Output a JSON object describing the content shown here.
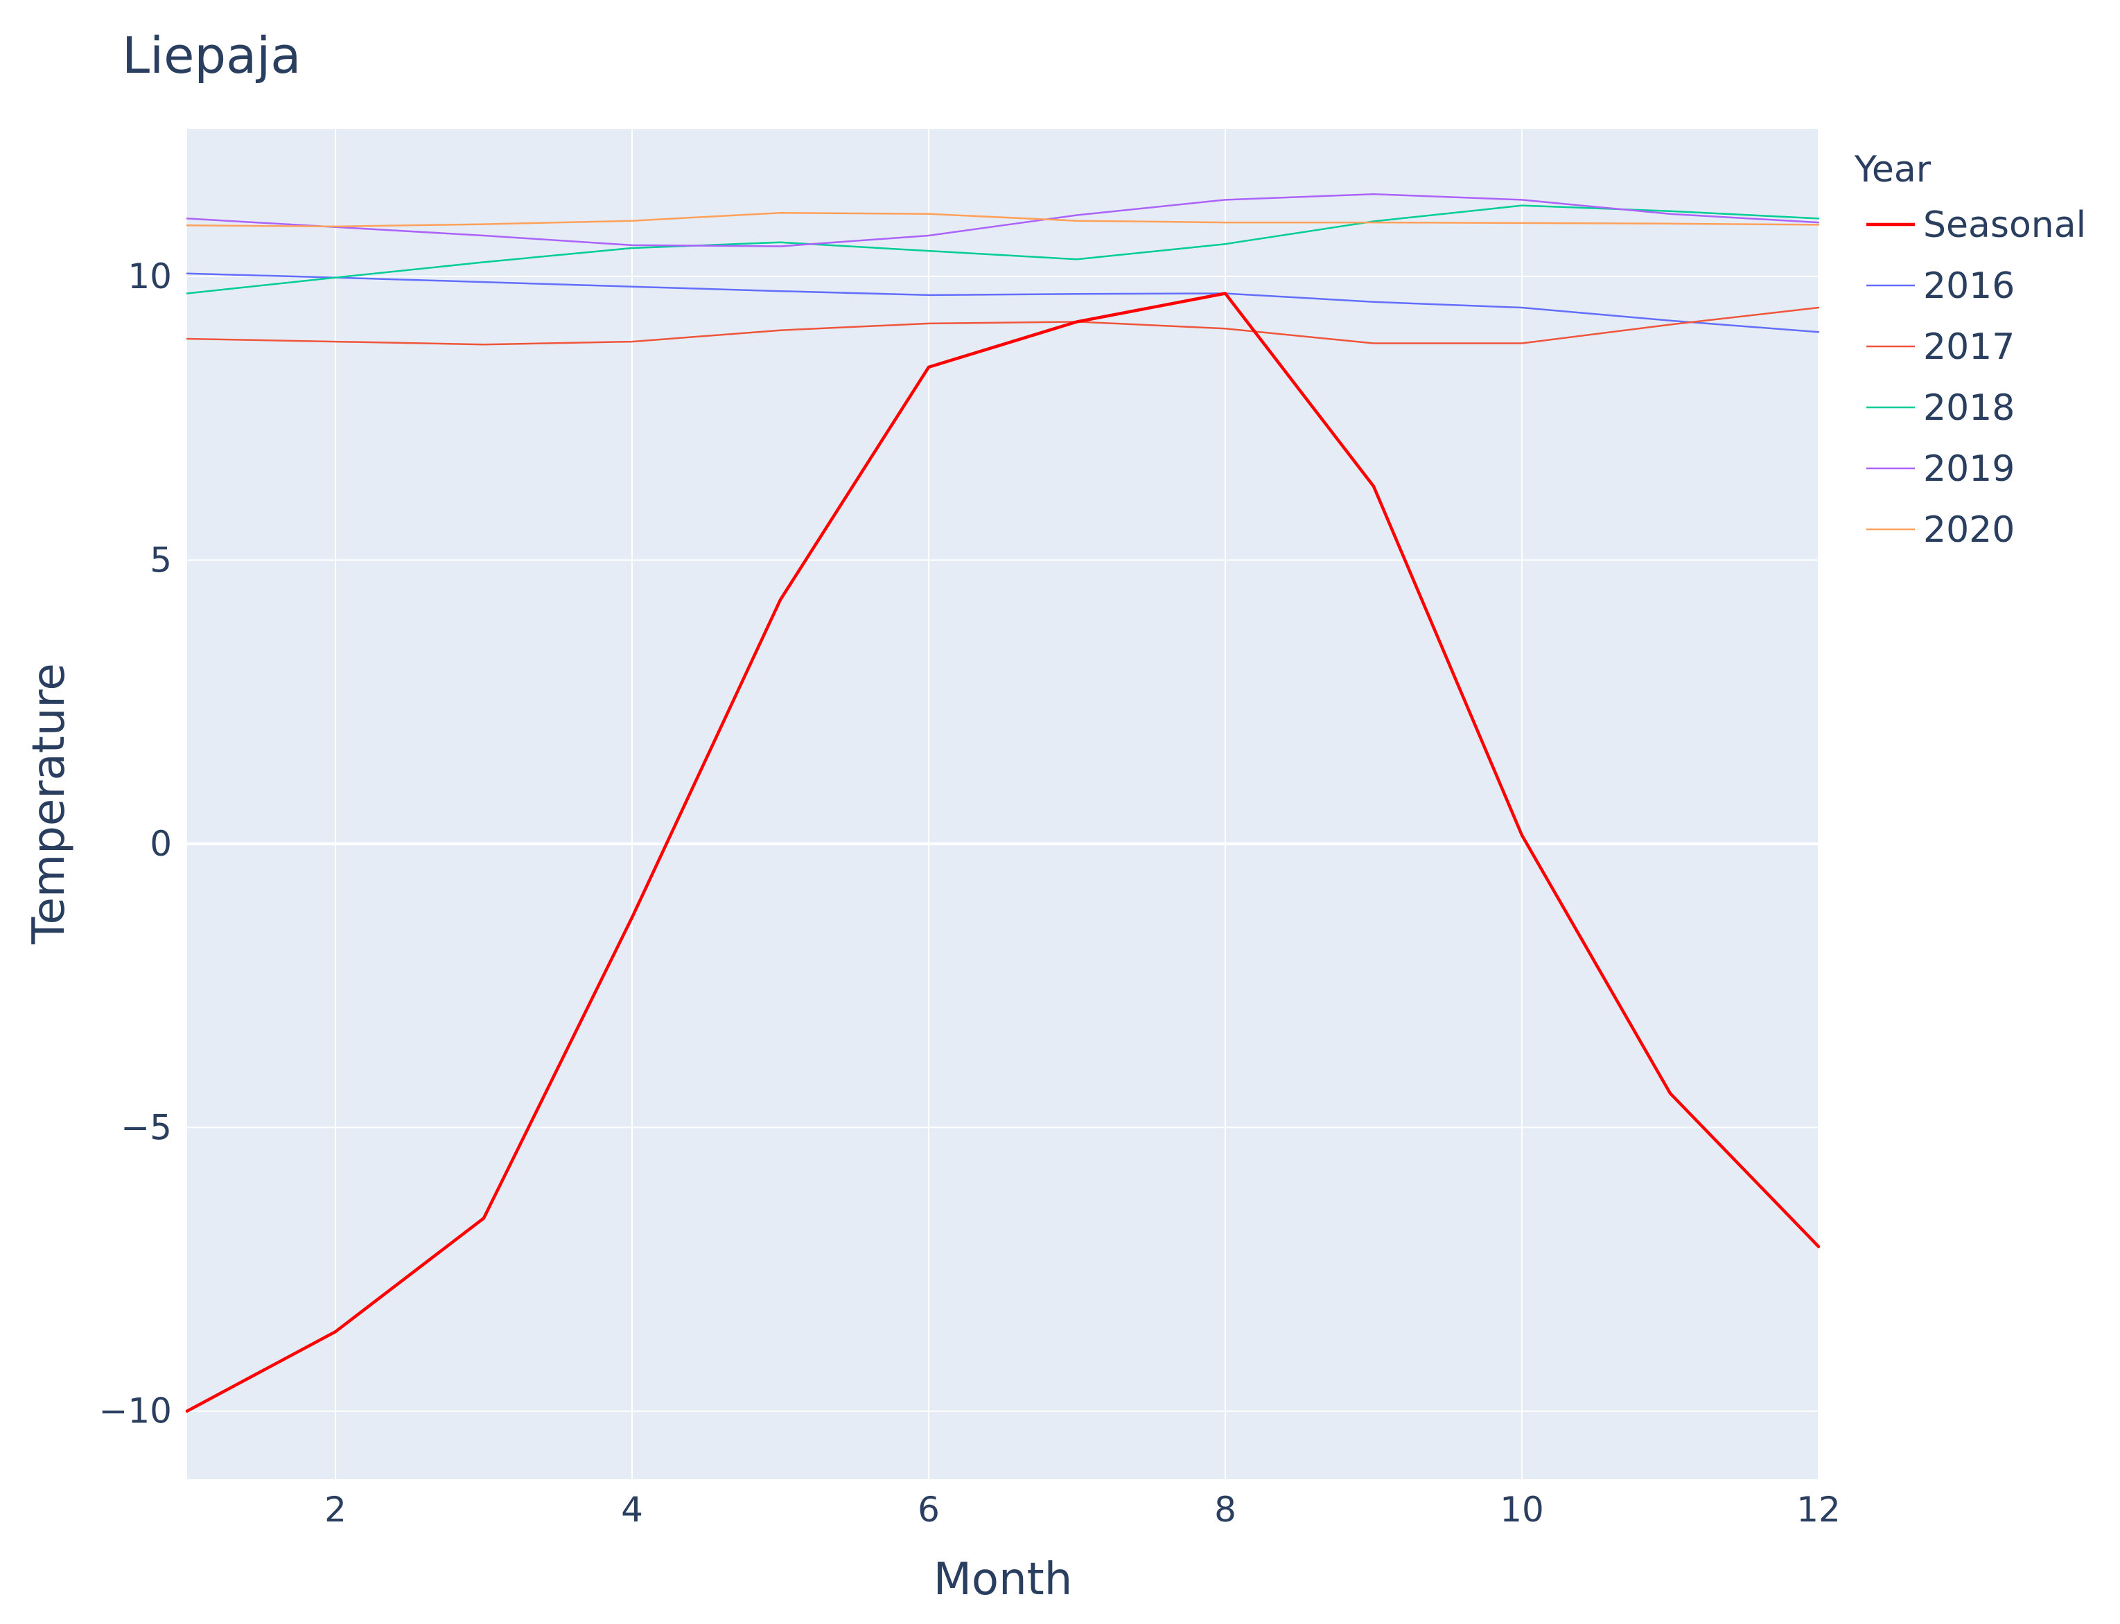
{
  "chart_data": {
    "type": "line",
    "title": "Liepaja",
    "xlabel": "Month",
    "ylabel": "Temperature",
    "xlim": [
      1,
      12
    ],
    "ylim": [
      -11.2,
      12.6
    ],
    "x_ticks": [
      2,
      4,
      6,
      8,
      10,
      12
    ],
    "y_ticks": [
      -10,
      -5,
      0,
      5,
      10
    ],
    "y_tick_labels": [
      "−10",
      "−5",
      "0",
      "5",
      "10"
    ],
    "grid": true,
    "legend_title": "Year",
    "legend_position": "right",
    "x": [
      1,
      2,
      3,
      4,
      5,
      6,
      7,
      8,
      9,
      10,
      11,
      12
    ],
    "series": [
      {
        "name": "Seasonal",
        "color": "#ff0000",
        "width": 4.5,
        "values": [
          -10.0,
          -8.6,
          -6.6,
          -1.3,
          4.3,
          8.4,
          9.2,
          9.7,
          6.3,
          0.15,
          -4.4,
          -7.1
        ]
      },
      {
        "name": "2016",
        "color": "#636efa",
        "width": 2.5,
        "values": [
          10.05,
          9.98,
          9.9,
          9.82,
          9.74,
          9.67,
          9.69,
          9.7,
          9.55,
          9.45,
          9.22,
          9.02
        ]
      },
      {
        "name": "2017",
        "color": "#ef553b",
        "width": 2.5,
        "values": [
          8.9,
          8.85,
          8.8,
          8.85,
          9.05,
          9.17,
          9.2,
          9.08,
          8.82,
          8.82,
          9.15,
          9.45
        ]
      },
      {
        "name": "2018",
        "color": "#00cc96",
        "width": 2.5,
        "values": [
          9.7,
          9.98,
          10.25,
          10.5,
          10.6,
          10.45,
          10.3,
          10.57,
          10.97,
          11.25,
          11.15,
          11.02
        ]
      },
      {
        "name": "2019",
        "color": "#ab63fa",
        "width": 2.5,
        "values": [
          11.02,
          10.87,
          10.72,
          10.55,
          10.53,
          10.72,
          11.08,
          11.35,
          11.45,
          11.35,
          11.1,
          10.95
        ]
      },
      {
        "name": "2020",
        "color": "#ffa15a",
        "width": 2.5,
        "values": [
          10.9,
          10.88,
          10.92,
          10.98,
          11.12,
          11.1,
          10.98,
          10.95,
          10.95,
          10.94,
          10.93,
          10.91
        ]
      }
    ]
  },
  "colors": {
    "plot_background": "#e5ecf6",
    "grid": "#ffffff",
    "text": "#2a3f5f"
  }
}
